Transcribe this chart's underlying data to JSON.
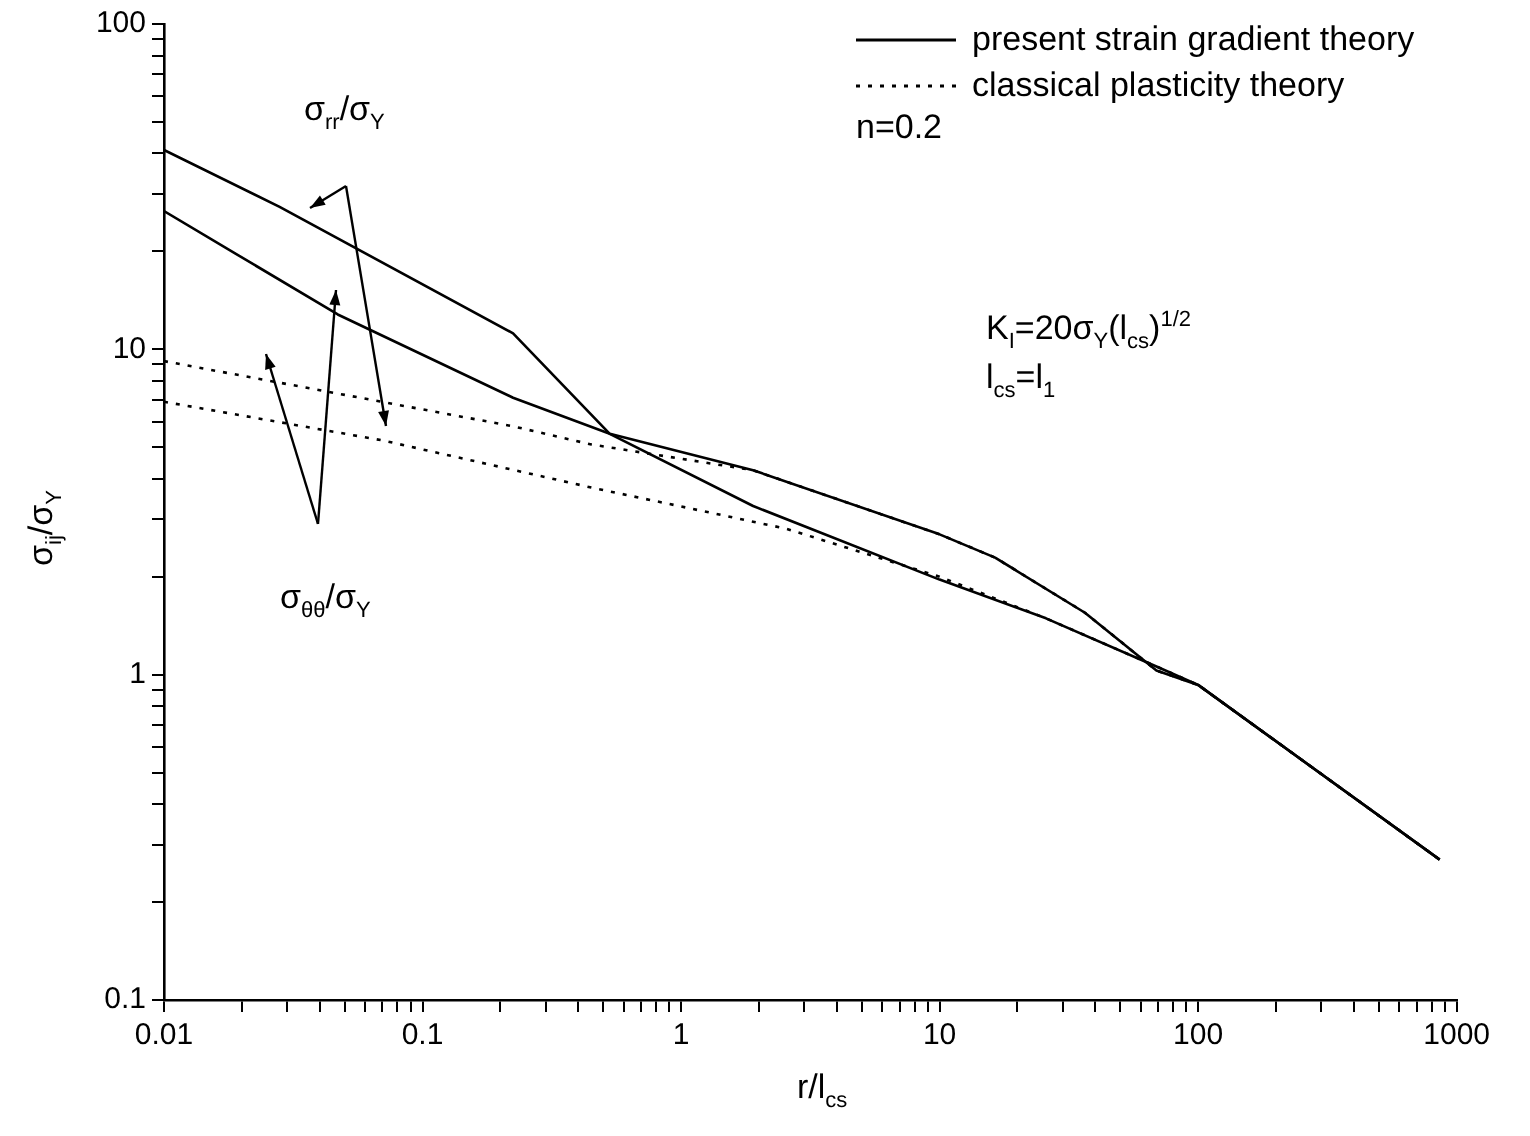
{
  "chart_data": {
    "type": "line",
    "xlabel": "r/l$_{cs}$",
    "ylabel": "σ$_{ij}$/σ$_{Y}$",
    "log": "xy",
    "xlim": [
      0.01,
      1000
    ],
    "ylim": [
      0.1,
      100
    ],
    "xticks": [
      0.01,
      {
        "value": 0.02,
        "label": null
      },
      {
        "value": 0.03,
        "label": null
      },
      {
        "value": 0.04,
        "label": null
      },
      {
        "value": 0.05,
        "label": null
      },
      {
        "value": 0.06,
        "label": null
      },
      {
        "value": 0.07,
        "label": null
      },
      {
        "value": 0.08,
        "label": null
      },
      {
        "value": 0.09,
        "label": null
      },
      0.1,
      {
        "value": 0.2,
        "label": null
      },
      {
        "value": 0.3,
        "label": null
      },
      {
        "value": 0.4,
        "label": null
      },
      {
        "value": 0.5,
        "label": null
      },
      {
        "value": 0.6,
        "label": null
      },
      {
        "value": 0.7,
        "label": null
      },
      {
        "value": 0.8,
        "label": null
      },
      {
        "value": 0.9,
        "label": null
      },
      1,
      {
        "value": 2,
        "label": null
      },
      {
        "value": 3,
        "label": null
      },
      {
        "value": 4,
        "label": null
      },
      {
        "value": 5,
        "label": null
      },
      {
        "value": 6,
        "label": null
      },
      {
        "value": 7,
        "label": null
      },
      {
        "value": 8,
        "label": null
      },
      {
        "value": 9,
        "label": null
      },
      10,
      {
        "value": 20,
        "label": null
      },
      {
        "value": 30,
        "label": null
      },
      {
        "value": 40,
        "label": null
      },
      {
        "value": 50,
        "label": null
      },
      {
        "value": 60,
        "label": null
      },
      {
        "value": 70,
        "label": null
      },
      {
        "value": 80,
        "label": null
      },
      {
        "value": 90,
        "label": null
      },
      100,
      {
        "value": 200,
        "label": null
      },
      {
        "value": 300,
        "label": null
      },
      {
        "value": 400,
        "label": null
      },
      {
        "value": 500,
        "label": null
      },
      {
        "value": 600,
        "label": null
      },
      {
        "value": 700,
        "label": null
      },
      {
        "value": 800,
        "label": null
      },
      {
        "value": 900,
        "label": null
      },
      1000
    ],
    "yticks": [
      0.1,
      {
        "value": 0.2,
        "label": null
      },
      {
        "value": 0.3,
        "label": null
      },
      {
        "value": 0.4,
        "label": null
      },
      {
        "value": 0.5,
        "label": null
      },
      {
        "value": 0.6,
        "label": null
      },
      {
        "value": 0.7,
        "label": null
      },
      {
        "value": 0.8,
        "label": null
      },
      {
        "value": 0.9,
        "label": null
      },
      1,
      {
        "value": 2,
        "label": null
      },
      {
        "value": 3,
        "label": null
      },
      {
        "value": 4,
        "label": null
      },
      {
        "value": 5,
        "label": null
      },
      {
        "value": 6,
        "label": null
      },
      {
        "value": 7,
        "label": null
      },
      {
        "value": 8,
        "label": null
      },
      {
        "value": 9,
        "label": null
      },
      10,
      {
        "value": 20,
        "label": null
      },
      {
        "value": 30,
        "label": null
      },
      {
        "value": 40,
        "label": null
      },
      {
        "value": 50,
        "label": null
      },
      {
        "value": 60,
        "label": null
      },
      {
        "value": 70,
        "label": null
      },
      {
        "value": 80,
        "label": null
      },
      {
        "value": 90,
        "label": null
      },
      100
    ],
    "grid": false,
    "legend": "top right",
    "marker": "none",
    "series": [
      {
        "name": "present strain gradient theory",
        "color": "#000000",
        "line_style": "solid",
        "x": [
          0.01,
          0.028,
          0.224,
          0.53,
          1.9,
          10,
          25.8,
          69,
          100,
          860
        ],
        "values": [
          41,
          27.4,
          11.2,
          5.5,
          3.3,
          1.96,
          1.49,
          1.06,
          0.93,
          0.27
        ]
      },
      {
        "color": "#000000",
        "line_style": "solid",
        "x": [
          0.01,
          0.047,
          0.224,
          0.53,
          1.9,
          10,
          16.4,
          36.5,
          69,
          100,
          860
        ],
        "values": [
          26.6,
          12.8,
          7.1,
          5.5,
          4.25,
          2.7,
          2.29,
          1.55,
          1.03,
          0.93,
          0.27
        ]
      },
      {
        "name": "classical plasticity theory",
        "color": "#000000",
        "line_style": "dotted",
        "x": [
          0.01,
          0.224,
          0.45,
          1.9,
          10,
          16.4,
          36.5,
          69,
          100,
          860
        ],
        "values": [
          9.2,
          5.8,
          5.1,
          4.25,
          2.7,
          2.29,
          1.55,
          1.03,
          0.93,
          0.27
        ]
      },
      {
        "color": "#000000",
        "line_style": "dotted",
        "x": [
          0.01,
          0.07,
          0.45,
          2.55,
          10,
          25.8,
          69,
          100,
          860
        ],
        "values": [
          6.9,
          5.25,
          3.76,
          2.81,
          2.0,
          1.49,
          1.06,
          0.93,
          0.27
        ]
      }
    ],
    "annotations": [
      "σ$_{rr}$/σ$_{Y}$",
      "σ$_{θθ}$/σ$_{Y}$",
      "n=0.2",
      "K$_{I}$=20σ$_{Y}$(l$_{cs}$)$^{1/2}$",
      "l$_{cs}$=l$_{1}$"
    ]
  }
}
